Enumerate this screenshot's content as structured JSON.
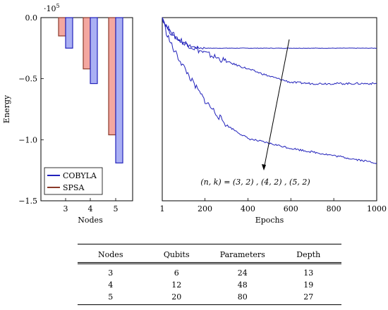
{
  "chart_data": [
    {
      "type": "bar",
      "ylabel": "Energy",
      "xlabel": "Nodes",
      "multiplier": "·10",
      "multiplier_exp": "5",
      "categories": [
        "3",
        "4",
        "5"
      ],
      "ylim": [
        -1.5,
        0
      ],
      "yticks": [
        0.0,
        -0.5,
        -1.0,
        -1.5
      ],
      "ytick_labels": [
        "0.0",
        "−0.5",
        "−1.0",
        "−1.5"
      ],
      "legend": "bottom-left",
      "series": [
        {
          "name": "SPSA",
          "color": "#8b3a2a",
          "fill": "#f4a7a0",
          "values": [
            -0.15,
            -0.42,
            -0.96
          ]
        },
        {
          "name": "COBYLA",
          "color": "#2222bb",
          "fill": "#aab0f4",
          "values": [
            -0.25,
            -0.54,
            -1.19
          ]
        }
      ]
    },
    {
      "type": "line",
      "xlabel": "Epochs",
      "xlim": [
        1,
        1000
      ],
      "ylim": [
        -1.5,
        0
      ],
      "xticks": [
        1,
        200,
        400,
        600,
        800,
        1000
      ],
      "xtick_labels": [
        "1",
        "200",
        "400",
        "600",
        "800",
        "1000"
      ],
      "annotation": "(n, k) = (3, 2) , (4, 2) , (5, 2)",
      "series": [
        {
          "label": "(3, 2)",
          "color": "#2222bb",
          "x": [
            1,
            20,
            50,
            80,
            120,
            160,
            200,
            300,
            500,
            1000
          ],
          "y": [
            0.0,
            -0.07,
            -0.14,
            -0.19,
            -0.23,
            -0.245,
            -0.25,
            -0.25,
            -0.25,
            -0.25
          ]
        },
        {
          "label": "(4, 2)",
          "color": "#2222bb",
          "x": [
            1,
            20,
            50,
            100,
            150,
            200,
            300,
            400,
            500,
            600,
            700,
            800,
            1000
          ],
          "y": [
            0.0,
            -0.07,
            -0.14,
            -0.2,
            -0.25,
            -0.29,
            -0.36,
            -0.42,
            -0.48,
            -0.53,
            -0.54,
            -0.54,
            -0.54
          ]
        },
        {
          "label": "(5, 2)",
          "color": "#2222bb",
          "x": [
            1,
            20,
            50,
            100,
            150,
            200,
            300,
            400,
            500,
            600,
            700,
            800,
            900,
            1000
          ],
          "y": [
            0.0,
            -0.12,
            -0.25,
            -0.4,
            -0.55,
            -0.68,
            -0.88,
            -0.99,
            -1.03,
            -1.07,
            -1.1,
            -1.13,
            -1.16,
            -1.19
          ]
        }
      ]
    }
  ],
  "table": {
    "headers": [
      "Nodes",
      "Qubits",
      "Parameters",
      "Depth"
    ],
    "rows": [
      [
        "3",
        "6",
        "24",
        "13"
      ],
      [
        "4",
        "12",
        "48",
        "19"
      ],
      [
        "5",
        "20",
        "80",
        "27"
      ]
    ]
  }
}
